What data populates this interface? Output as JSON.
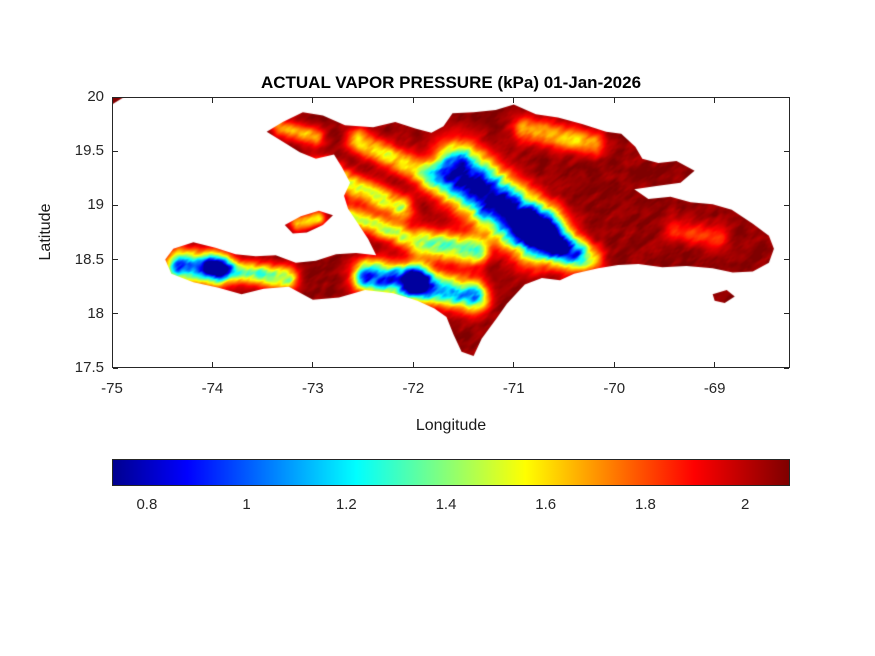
{
  "chart_data": {
    "type": "heatmap",
    "title": "ACTUAL VAPOR PRESSURE (kPa) 01-Jan-2026",
    "xlabel": "Longitude",
    "ylabel": "Latitude",
    "units": "kPa",
    "date": "01-Jan-2026",
    "xlim": [
      -75,
      -68.25
    ],
    "ylim": [
      17.5,
      20
    ],
    "xticks": [
      -75,
      -74,
      -73,
      -72,
      -71,
      -70,
      -69
    ],
    "yticks": [
      20,
      19.5,
      19,
      18.5,
      18,
      17.5
    ],
    "grid": false,
    "colors": {
      "background": "#ffffff",
      "axis": "#262626",
      "title": "#000000"
    },
    "colormap": {
      "name": "jet",
      "stops": [
        [
          0,
          "#00008f"
        ],
        [
          0.11,
          "#0000ff"
        ],
        [
          0.36,
          "#00ffff"
        ],
        [
          0.61,
          "#ffff00"
        ],
        [
          0.86,
          "#ff0000"
        ],
        [
          1,
          "#7f0000"
        ]
      ]
    },
    "colorbar": {
      "orientation": "horizontal",
      "position": "bottom",
      "range": [
        0.73,
        2.09
      ],
      "ticks": [
        0.8,
        1,
        1.2,
        1.4,
        1.6,
        1.8,
        2
      ]
    },
    "terrain": {
      "polygons": {
        "hispaniola": [
          [
            -73.46,
            19.68
          ],
          [
            -73.3,
            19.77
          ],
          [
            -73.1,
            19.86
          ],
          [
            -72.9,
            19.83
          ],
          [
            -72.68,
            19.74
          ],
          [
            -72.4,
            19.72
          ],
          [
            -72.18,
            19.77
          ],
          [
            -71.98,
            19.71
          ],
          [
            -71.82,
            19.67
          ],
          [
            -71.7,
            19.73
          ],
          [
            -71.61,
            19.85
          ],
          [
            -71.4,
            19.86
          ],
          [
            -71.18,
            19.88
          ],
          [
            -71.0,
            19.93
          ],
          [
            -70.78,
            19.84
          ],
          [
            -70.56,
            19.81
          ],
          [
            -70.32,
            19.75
          ],
          [
            -70.08,
            19.68
          ],
          [
            -69.93,
            19.66
          ],
          [
            -69.79,
            19.54
          ],
          [
            -69.72,
            19.43
          ],
          [
            -69.56,
            19.39
          ],
          [
            -69.38,
            19.41
          ],
          [
            -69.2,
            19.32
          ],
          [
            -69.34,
            19.21
          ],
          [
            -69.58,
            19.18
          ],
          [
            -69.8,
            19.15
          ],
          [
            -69.66,
            19.06
          ],
          [
            -69.44,
            19.08
          ],
          [
            -69.24,
            19.03
          ],
          [
            -69.02,
            19.01
          ],
          [
            -68.83,
            18.96
          ],
          [
            -68.62,
            18.83
          ],
          [
            -68.46,
            18.72
          ],
          [
            -68.41,
            18.6
          ],
          [
            -68.46,
            18.47
          ],
          [
            -68.62,
            18.39
          ],
          [
            -68.82,
            18.38
          ],
          [
            -69.02,
            18.42
          ],
          [
            -69.28,
            18.44
          ],
          [
            -69.52,
            18.43
          ],
          [
            -69.76,
            18.46
          ],
          [
            -69.96,
            18.45
          ],
          [
            -70.16,
            18.42
          ],
          [
            -70.4,
            18.37
          ],
          [
            -70.54,
            18.31
          ],
          [
            -70.72,
            18.33
          ],
          [
            -70.89,
            18.27
          ],
          [
            -70.99,
            18.17
          ],
          [
            -71.07,
            18.09
          ],
          [
            -71.17,
            17.96
          ],
          [
            -71.32,
            17.77
          ],
          [
            -71.4,
            17.61
          ],
          [
            -71.52,
            17.65
          ],
          [
            -71.6,
            17.81
          ],
          [
            -71.67,
            17.97
          ],
          [
            -71.79,
            18.05
          ],
          [
            -71.96,
            18.12
          ],
          [
            -72.2,
            18.19
          ],
          [
            -72.48,
            18.22
          ],
          [
            -72.74,
            18.15
          ],
          [
            -73.0,
            18.13
          ],
          [
            -73.24,
            18.25
          ],
          [
            -73.49,
            18.23
          ],
          [
            -73.71,
            18.18
          ],
          [
            -73.94,
            18.24
          ],
          [
            -74.19,
            18.29
          ],
          [
            -74.41,
            18.37
          ],
          [
            -74.47,
            18.5
          ],
          [
            -74.39,
            18.6
          ],
          [
            -74.19,
            18.66
          ],
          [
            -73.97,
            18.61
          ],
          [
            -73.77,
            18.55
          ],
          [
            -73.57,
            18.53
          ],
          [
            -73.37,
            18.54
          ],
          [
            -73.17,
            18.47
          ],
          [
            -72.97,
            18.49
          ],
          [
            -72.77,
            18.55
          ],
          [
            -72.57,
            18.56
          ],
          [
            -72.37,
            18.54
          ],
          [
            -72.45,
            18.69
          ],
          [
            -72.55,
            18.83
          ],
          [
            -72.65,
            18.97
          ],
          [
            -72.69,
            19.09
          ],
          [
            -72.63,
            19.21
          ],
          [
            -72.71,
            19.35
          ],
          [
            -72.79,
            19.47
          ],
          [
            -72.97,
            19.43
          ],
          [
            -73.13,
            19.49
          ],
          [
            -73.27,
            19.57
          ]
        ],
        "gonave": [
          [
            -73.28,
            18.82
          ],
          [
            -73.12,
            18.9
          ],
          [
            -72.94,
            18.95
          ],
          [
            -72.8,
            18.91
          ],
          [
            -72.9,
            18.82
          ],
          [
            -73.06,
            18.75
          ],
          [
            -73.2,
            18.74
          ]
        ],
        "saona": [
          [
            -69.02,
            18.18
          ],
          [
            -68.88,
            18.22
          ],
          [
            -68.8,
            18.16
          ],
          [
            -68.9,
            18.1
          ],
          [
            -69.0,
            18.12
          ]
        ],
        "corner_sliver": [
          [
            -75.0,
            20.0
          ],
          [
            -74.88,
            20.0
          ],
          [
            -75.0,
            19.93
          ]
        ]
      },
      "ridges": [
        {
          "name": "cordillera-central",
          "from": [
            -71.55,
            19.3
          ],
          "to": [
            -70.78,
            18.74
          ],
          "sigma": 0.17,
          "depth": 1.4
        },
        {
          "name": "cordillera-central-se",
          "from": [
            -70.8,
            18.8
          ],
          "to": [
            -70.4,
            18.56
          ],
          "sigma": 0.11,
          "depth": 0.8
        },
        {
          "name": "massif-de-la-selle",
          "from": [
            -72.45,
            18.34
          ],
          "to": [
            -71.98,
            18.3
          ],
          "sigma": 0.1,
          "depth": 1.15
        },
        {
          "name": "sierra-de-bahoruco",
          "from": [
            -71.95,
            18.27
          ],
          "to": [
            -71.4,
            18.16
          ],
          "sigma": 0.1,
          "depth": 0.95
        },
        {
          "name": "massif-de-la-hotte",
          "from": [
            -74.32,
            18.44
          ],
          "to": [
            -73.96,
            18.42
          ],
          "sigma": 0.1,
          "depth": 1.05
        },
        {
          "name": "tiburon-spine",
          "from": [
            -74.0,
            18.42
          ],
          "to": [
            -73.25,
            18.33
          ],
          "sigma": 0.07,
          "depth": 0.72
        },
        {
          "name": "sierra-de-neiba",
          "from": [
            -71.92,
            18.66
          ],
          "to": [
            -71.38,
            18.58
          ],
          "sigma": 0.09,
          "depth": 0.72
        },
        {
          "name": "montagnes-noires",
          "from": [
            -72.95,
            19.33
          ],
          "to": [
            -72.12,
            18.98
          ],
          "sigma": 0.08,
          "depth": 0.55
        },
        {
          "name": "massif-du-nord",
          "from": [
            -72.55,
            19.6
          ],
          "to": [
            -71.82,
            19.26
          ],
          "sigma": 0.08,
          "depth": 0.48
        },
        {
          "name": "chaine-des-matheux",
          "from": [
            -72.62,
            18.9
          ],
          "to": [
            -72.12,
            18.72
          ],
          "sigma": 0.07,
          "depth": 0.55
        },
        {
          "name": "cordillera-septentrional",
          "from": [
            -70.9,
            19.7
          ],
          "to": [
            -70.2,
            19.57
          ],
          "sigma": 0.08,
          "depth": 0.42
        },
        {
          "name": "sierra-de-ocoa",
          "from": [
            -70.55,
            18.58
          ],
          "to": [
            -70.2,
            18.5
          ],
          "sigma": 0.08,
          "depth": 0.33
        },
        {
          "name": "cordillera-oriental",
          "from": [
            -69.4,
            18.78
          ],
          "to": [
            -68.95,
            18.7
          ],
          "sigma": 0.08,
          "depth": 0.22
        },
        {
          "name": "nord-ouest-ridge",
          "from": [
            -73.33,
            19.72
          ],
          "to": [
            -72.97,
            19.63
          ],
          "sigma": 0.06,
          "depth": 0.38
        },
        {
          "name": "gonave-ridge",
          "from": [
            -73.15,
            18.83
          ],
          "to": [
            -72.95,
            18.88
          ],
          "sigma": 0.05,
          "depth": 0.45
        }
      ],
      "field": {
        "base": 2.06,
        "clamp": [
          0.75,
          2.09
        ],
        "noise": {
          "amp1": 0.3,
          "freq1": 9,
          "amp2": 0.12,
          "freq2": 22,
          "aniso_angle_deg": -35,
          "aniso_stretch": 2.3
        }
      }
    }
  }
}
